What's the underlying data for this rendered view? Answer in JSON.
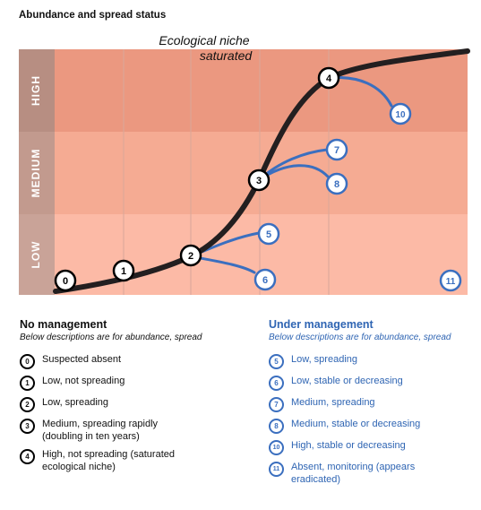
{
  "title": "Abundance and spread status",
  "niche_label_1": "Ecological niche",
  "niche_label_2": "saturated",
  "bands": [
    {
      "label": "HIGH",
      "color": "#eb9880",
      "tab_color": "#b78e82"
    },
    {
      "label": "MEDIUM",
      "color": "#f5ab93",
      "tab_color": "#c29a8e"
    },
    {
      "label": "LOW",
      "color": "#fcbaa6",
      "tab_color": "#c9a398"
    }
  ],
  "markers": [
    {
      "id": "0",
      "style": "black"
    },
    {
      "id": "1",
      "style": "black"
    },
    {
      "id": "2",
      "style": "black"
    },
    {
      "id": "3",
      "style": "black"
    },
    {
      "id": "4",
      "style": "black"
    },
    {
      "id": "5",
      "style": "blue"
    },
    {
      "id": "6",
      "style": "blue"
    },
    {
      "id": "7",
      "style": "blue"
    },
    {
      "id": "8",
      "style": "blue"
    },
    {
      "id": "10",
      "style": "blue"
    },
    {
      "id": "11",
      "style": "blue"
    }
  ],
  "no_management": {
    "title": "No management",
    "subtitle": "Below descriptions are for abundance, spread",
    "items": [
      {
        "num": "0",
        "text": "Suspected absent"
      },
      {
        "num": "1",
        "text": "Low, not spreading"
      },
      {
        "num": "2",
        "text": "Low, spreading"
      },
      {
        "num": "3",
        "text": "Medium, spreading rapidly (doubling in ten years)"
      },
      {
        "num": "4",
        "text": "High, not spreading (saturated ecological niche)"
      }
    ]
  },
  "under_management": {
    "title": "Under management",
    "subtitle": "Below descriptions are for abundance, spread",
    "items": [
      {
        "num": "5",
        "text": "Low, spreading"
      },
      {
        "num": "6",
        "text": "Low, stable or decreasing"
      },
      {
        "num": "7",
        "text": "Medium, spreading"
      },
      {
        "num": "8",
        "text": "Medium, stable or decreasing"
      },
      {
        "num": "10",
        "text": "High, stable or decreasing"
      },
      {
        "num": "11",
        "text": "Absent, monitoring (appears eradicated)"
      }
    ]
  },
  "colors": {
    "curve": "#231f20",
    "blue": "#3b6fbf",
    "grid": "#d9a79a"
  }
}
